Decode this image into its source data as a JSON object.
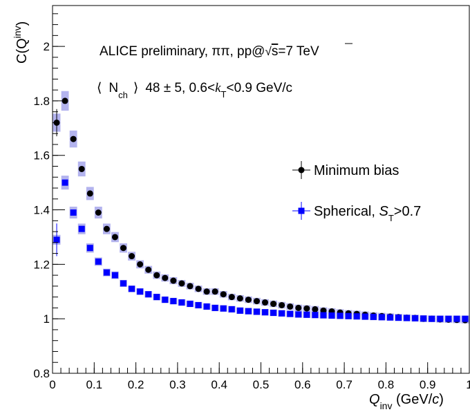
{
  "chart_data": {
    "type": "scatter",
    "annotations": {
      "line1_prefix": "ALICE preliminary, ",
      "line1_pipi": "ππ",
      "line1_mid": ",  pp@",
      "line1_sqrt": "√",
      "line1_s": "s",
      "line1_energy": "=7 TeV",
      "line2_open": "⟨",
      "line2_N": "N",
      "line2_ch": "ch",
      "line2_close": "⟩",
      "line2_value": "48 ± 5,  0.6<",
      "line2_k": "k",
      "line2_T": "T",
      "line2_tail": "<0.9 GeV/c"
    },
    "xlabel": {
      "main": "Q",
      "sub": "inv",
      "units_open": " (GeV/",
      "units_c": "c",
      "units_close": ")"
    },
    "ylabel": {
      "main": "C(Q",
      "sub": "inv",
      "close": ")"
    },
    "xlim": [
      0,
      1.0
    ],
    "ylim": [
      0.8,
      2.15
    ],
    "xticks": [
      0,
      0.1,
      0.2,
      0.3,
      0.4,
      0.5,
      0.6,
      0.7,
      0.8,
      0.9,
      1.0
    ],
    "xtick_labels": [
      "0",
      "0.1",
      "0.2",
      "0.3",
      "0.4",
      "0.5",
      "0.6",
      "0.7",
      "0.8",
      "0.9",
      "1"
    ],
    "yticks": [
      0.8,
      1.0,
      1.2,
      1.4,
      1.6,
      1.8,
      2.0
    ],
    "ytick_labels": [
      "0.8",
      "1",
      "1.2",
      "1.4",
      "1.6",
      "1.8",
      "2"
    ],
    "grid": false,
    "legend_position": "right-middle",
    "colors": {
      "min_bias": "#000000",
      "spherical": "#0000ff",
      "syst_band": "#b3b3ee"
    },
    "series": [
      {
        "name": "Minimum bias",
        "marker": "circle",
        "x": [
          0.01,
          0.03,
          0.05,
          0.07,
          0.09,
          0.11,
          0.13,
          0.15,
          0.17,
          0.19,
          0.21,
          0.23,
          0.25,
          0.27,
          0.29,
          0.31,
          0.33,
          0.35,
          0.37,
          0.39,
          0.41,
          0.43,
          0.45,
          0.47,
          0.49,
          0.51,
          0.53,
          0.55,
          0.57,
          0.59,
          0.61,
          0.63,
          0.65,
          0.67,
          0.69,
          0.71,
          0.73,
          0.75,
          0.77,
          0.79,
          0.81,
          0.83,
          0.85,
          0.87,
          0.89,
          0.91,
          0.93,
          0.95,
          0.97,
          0.99
        ],
        "y": [
          1.72,
          1.8,
          1.66,
          1.55,
          1.46,
          1.39,
          1.33,
          1.3,
          1.26,
          1.23,
          1.2,
          1.18,
          1.16,
          1.15,
          1.14,
          1.13,
          1.12,
          1.11,
          1.1,
          1.1,
          1.09,
          1.08,
          1.075,
          1.07,
          1.065,
          1.06,
          1.055,
          1.05,
          1.045,
          1.04,
          1.038,
          1.035,
          1.03,
          1.027,
          1.023,
          1.02,
          1.018,
          1.015,
          1.012,
          1.01,
          1.008,
          1.006,
          1.004,
          1.003,
          1.0,
          1.0,
          0.998,
          0.997,
          0.996,
          0.995
        ]
      },
      {
        "name": "Spherical, S_T>0.7",
        "label_main": "Spherical, ",
        "label_S": "S",
        "label_T": "T",
        "label_tail": ">0.7",
        "marker": "square",
        "x": [
          0.01,
          0.03,
          0.05,
          0.07,
          0.09,
          0.11,
          0.13,
          0.15,
          0.17,
          0.19,
          0.21,
          0.23,
          0.25,
          0.27,
          0.29,
          0.31,
          0.33,
          0.35,
          0.37,
          0.39,
          0.41,
          0.43,
          0.45,
          0.47,
          0.49,
          0.51,
          0.53,
          0.55,
          0.57,
          0.59,
          0.61,
          0.63,
          0.65,
          0.67,
          0.69,
          0.71,
          0.73,
          0.75,
          0.77,
          0.79,
          0.81,
          0.83,
          0.85,
          0.87,
          0.89,
          0.91,
          0.93,
          0.95,
          0.97,
          0.99
        ],
        "y": [
          1.29,
          1.5,
          1.39,
          1.33,
          1.26,
          1.21,
          1.17,
          1.16,
          1.13,
          1.11,
          1.1,
          1.09,
          1.08,
          1.07,
          1.065,
          1.06,
          1.055,
          1.05,
          1.045,
          1.04,
          1.038,
          1.035,
          1.03,
          1.028,
          1.026,
          1.024,
          1.022,
          1.02,
          1.018,
          1.016,
          1.015,
          1.014,
          1.013,
          1.012,
          1.011,
          1.01,
          1.009,
          1.008,
          1.007,
          1.006,
          1.005,
          1.004,
          1.003,
          1.002,
          1.001,
          1.0,
          1.0,
          1.0,
          1.0,
          1.0
        ]
      }
    ]
  }
}
